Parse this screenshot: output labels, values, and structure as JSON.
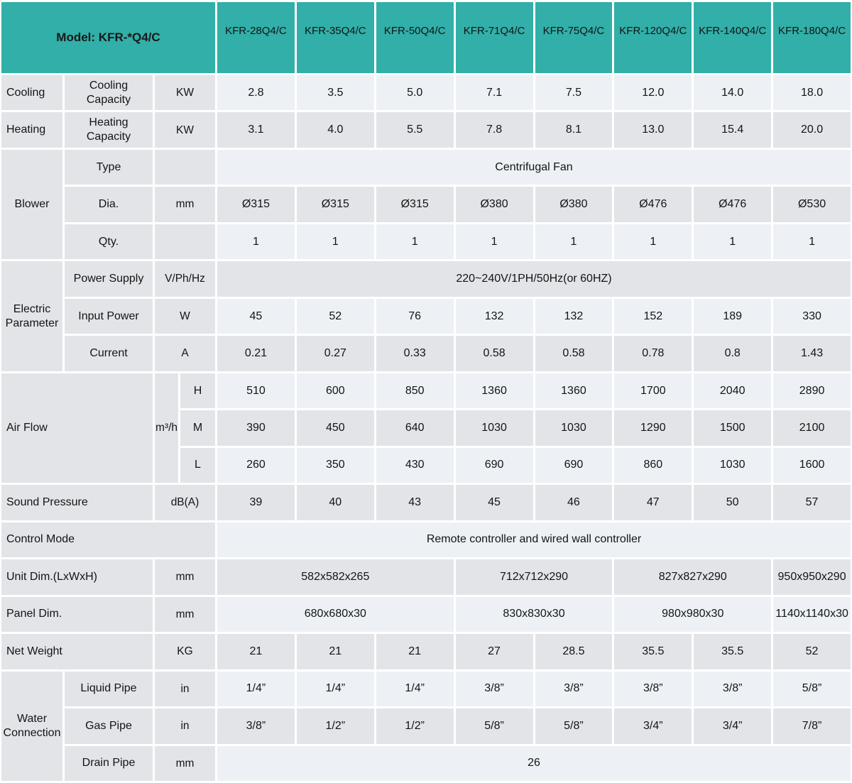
{
  "colors": {
    "teal": "#31afa8",
    "row_gray": "#e2e4e8",
    "row_light": "#edf1f5"
  },
  "header": {
    "model_label": "Model: KFR-*Q4/C",
    "models": [
      "KFR-28Q4/C",
      "KFR-35Q4/C",
      "KFR-50Q4/C",
      "KFR-71Q4/C",
      "KFR-75Q4/C",
      "KFR-120Q4/C",
      "KFR-140Q4/C",
      "KFR-180Q4/C"
    ]
  },
  "rows": {
    "cooling": {
      "category": "Cooling",
      "label": "Cooling\nCapacity",
      "unit": "KW",
      "values": [
        "2.8",
        "3.5",
        "5.0",
        "7.1",
        "7.5",
        "12.0",
        "14.0",
        "18.0"
      ]
    },
    "heating": {
      "category": "Heating",
      "label": "Heating\nCapacity",
      "unit": "KW",
      "values": [
        "3.1",
        "4.0",
        "5.5",
        "7.8",
        "8.1",
        "13.0",
        "15.4",
        "20.0"
      ]
    },
    "blower": {
      "category": "Blower",
      "type": {
        "label": "Type",
        "unit": "",
        "value": "Centrifugal Fan"
      },
      "dia": {
        "label": "Dia.",
        "unit": "mm",
        "values": [
          "Ø315",
          "Ø315",
          "Ø315",
          "Ø380",
          "Ø380",
          "Ø476",
          "Ø476",
          "Ø530"
        ]
      },
      "qty": {
        "label": "Qty.",
        "unit": "",
        "values": [
          "1",
          "1",
          "1",
          "1",
          "1",
          "1",
          "1",
          "1"
        ]
      }
    },
    "electric": {
      "category": "Electric\nParameter",
      "power_supply": {
        "label": "Power Supply",
        "unit": "V/Ph/Hz",
        "value": "220~240V/1PH/50Hz(or 60HZ)"
      },
      "input_power": {
        "label": "Input Power",
        "unit": "W",
        "values": [
          "45",
          "52",
          "76",
          "132",
          "132",
          "152",
          "189",
          "330"
        ]
      },
      "current": {
        "label": "Current",
        "unit": "A",
        "values": [
          "0.21",
          "0.27",
          "0.33",
          "0.58",
          "0.58",
          "0.78",
          "0.8",
          "1.43"
        ]
      }
    },
    "air_flow": {
      "category": "Air Flow",
      "unit": "m³/h",
      "high": {
        "label": "H",
        "values": [
          "510",
          "600",
          "850",
          "1360",
          "1360",
          "1700",
          "2040",
          "2890"
        ]
      },
      "medium": {
        "label": "M",
        "values": [
          "390",
          "450",
          "640",
          "1030",
          "1030",
          "1290",
          "1500",
          "2100"
        ]
      },
      "low": {
        "label": "L",
        "values": [
          "260",
          "350",
          "430",
          "690",
          "690",
          "860",
          "1030",
          "1600"
        ]
      }
    },
    "sound_pressure": {
      "category": "Sound Pressure",
      "unit": "dB(A)",
      "values": [
        "39",
        "40",
        "43",
        "45",
        "46",
        "47",
        "50",
        "57"
      ]
    },
    "control_mode": {
      "category": "Control Mode",
      "value": "Remote controller and wired wall controller"
    },
    "unit_dim": {
      "category": "Unit Dim.(LxWxH)",
      "unit": "mm",
      "values": [
        "582x582x265",
        "712x712x290",
        "827x827x290",
        "950x950x290"
      ]
    },
    "panel_dim": {
      "category": "Panel Dim.",
      "unit": "mm",
      "values": [
        "680x680x30",
        "830x830x30",
        "980x980x30",
        "1140x1140x30"
      ]
    },
    "net_weight": {
      "category": "Net Weight",
      "unit": "KG",
      "values": [
        "21",
        "21",
        "21",
        "27",
        "28.5",
        "35.5",
        "35.5",
        "52"
      ]
    },
    "water": {
      "category": "Water\nConnection",
      "liquid": {
        "label": "Liquid Pipe",
        "unit": "in",
        "values": [
          "1/4”",
          "1/4”",
          "1/4”",
          "3/8”",
          "3/8”",
          "3/8”",
          "3/8”",
          "5/8”"
        ]
      },
      "gas": {
        "label": "Gas Pipe",
        "unit": "in",
        "values": [
          "3/8”",
          "1/2”",
          "1/2”",
          "5/8”",
          "5/8”",
          "3/4”",
          "3/4”",
          "7/8”"
        ]
      },
      "drain": {
        "label": "Drain Pipe",
        "unit": "mm",
        "value": "26"
      }
    }
  }
}
